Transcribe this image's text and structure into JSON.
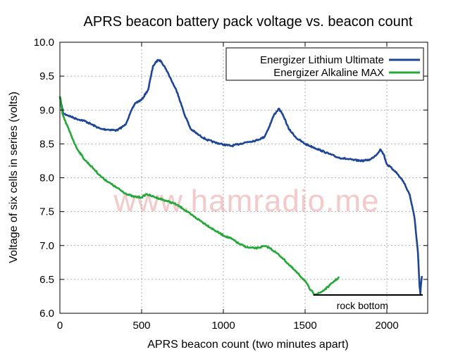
{
  "chart_data": {
    "type": "line",
    "title": "APRS beacon battery pack voltage vs. beacon count",
    "xlabel": "APRS beacon count (two minutes apart)",
    "ylabel": "Voltage of six cells in series (volts)",
    "xlim": [
      0,
      2250
    ],
    "ylim": [
      6.0,
      10.0
    ],
    "xticks": [
      0,
      500,
      1000,
      1500,
      2000
    ],
    "xtick_labels": [
      "0",
      "500",
      "1000",
      "1500",
      "2000"
    ],
    "yticks": [
      6.0,
      6.5,
      7.0,
      7.5,
      8.0,
      8.5,
      9.0,
      9.5,
      10.0
    ],
    "ytick_labels": [
      "6.0",
      "6.5",
      "7.0",
      "7.5",
      "8.0",
      "8.5",
      "9.0",
      "9.5",
      "10.0"
    ],
    "grid": true,
    "legend": "top-right",
    "watermark": "www.hamradio.me",
    "annotation": {
      "text": "rock bottom",
      "y": 6.27,
      "x_start": 1550,
      "x_end": 2220
    },
    "series": [
      {
        "name": "Energizer Lithium Ultimate",
        "color": "#1f4596",
        "x": [
          0,
          20,
          50,
          100,
          150,
          200,
          250,
          300,
          350,
          400,
          430,
          460,
          500,
          540,
          570,
          600,
          620,
          650,
          680,
          700,
          720,
          760,
          800,
          850,
          900,
          950,
          1000,
          1050,
          1100,
          1150,
          1200,
          1250,
          1280,
          1310,
          1340,
          1370,
          1400,
          1450,
          1500,
          1550,
          1600,
          1650,
          1700,
          1750,
          1800,
          1850,
          1900,
          1940,
          1960,
          1980,
          2000,
          2050,
          2100,
          2140,
          2170,
          2190,
          2200,
          2205,
          2210,
          2215
        ],
        "values": [
          9.2,
          8.95,
          8.92,
          8.87,
          8.84,
          8.78,
          8.72,
          8.71,
          8.7,
          8.78,
          8.95,
          9.1,
          9.15,
          9.3,
          9.65,
          9.74,
          9.72,
          9.6,
          9.45,
          9.35,
          9.25,
          8.95,
          8.72,
          8.63,
          8.56,
          8.52,
          8.49,
          8.47,
          8.5,
          8.53,
          8.55,
          8.6,
          8.75,
          8.93,
          9.02,
          8.9,
          8.72,
          8.58,
          8.5,
          8.45,
          8.4,
          8.35,
          8.3,
          8.28,
          8.26,
          8.25,
          8.27,
          8.35,
          8.42,
          8.35,
          8.2,
          8.1,
          7.95,
          7.75,
          7.4,
          6.9,
          6.4,
          6.28,
          6.45,
          6.55
        ]
      },
      {
        "name": "Energizer Alkaline MAX",
        "color": "#24a83a",
        "x": [
          0,
          15,
          30,
          60,
          100,
          150,
          200,
          250,
          300,
          350,
          400,
          450,
          500,
          530,
          560,
          600,
          650,
          700,
          750,
          800,
          850,
          900,
          950,
          1000,
          1050,
          1100,
          1150,
          1200,
          1250,
          1280,
          1320,
          1360,
          1400,
          1450,
          1500,
          1530,
          1560,
          1590,
          1620,
          1650,
          1680,
          1710
        ],
        "values": [
          9.2,
          8.95,
          8.85,
          8.68,
          8.45,
          8.27,
          8.15,
          8.02,
          7.93,
          7.85,
          7.77,
          7.72,
          7.71,
          7.76,
          7.73,
          7.7,
          7.66,
          7.62,
          7.55,
          7.46,
          7.38,
          7.3,
          7.22,
          7.15,
          7.1,
          7.02,
          6.97,
          6.96,
          6.99,
          6.97,
          6.9,
          6.82,
          6.72,
          6.6,
          6.48,
          6.35,
          6.28,
          6.3,
          6.35,
          6.41,
          6.48,
          6.53
        ]
      }
    ]
  }
}
